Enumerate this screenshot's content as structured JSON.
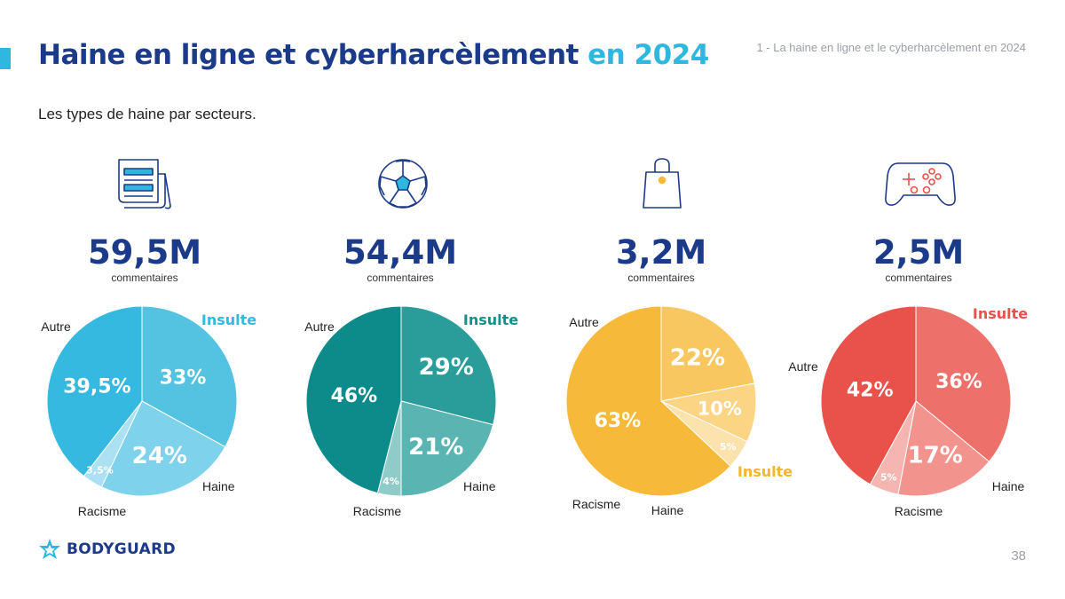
{
  "header": {
    "title_main": "Haine en ligne et cyberharcèlement",
    "title_highlight": "en 2024",
    "section": "1 - La haine en ligne et le cyberharcèlement en 2024",
    "subtitle": "Les  types de haine par secteurs."
  },
  "footer": {
    "brand": "BODYGUARD",
    "page": "38"
  },
  "icons": [
    "newspaper-icon",
    "football-icon",
    "shopping-bag-icon",
    "gamepad-icon"
  ],
  "colors": {
    "title": "#1b3a8a",
    "accent": "#2fb8df"
  },
  "chart_data": [
    {
      "type": "pie",
      "total": "59,5M",
      "unit": "commentaires",
      "slices": [
        {
          "label": "Insulte",
          "value": 33,
          "display": "33%",
          "color": "#54c3e2"
        },
        {
          "label": "Haine",
          "value": 24,
          "display": "24%",
          "color": "#7fd2ec"
        },
        {
          "label": "Racisme",
          "value": 3.5,
          "display": "3,5%",
          "color": "#abe1f3"
        },
        {
          "label": "Autre",
          "value": 39.5,
          "display": "39,5%",
          "color": "#35b9e0"
        }
      ],
      "highlight_color": "#35b9e0"
    },
    {
      "type": "pie",
      "total": "54,4M",
      "unit": "commentaires",
      "slices": [
        {
          "label": "Insulte",
          "value": 29,
          "display": "29%",
          "color": "#2a9c9a"
        },
        {
          "label": "Haine",
          "value": 21,
          "display": "21%",
          "color": "#5ab4b1"
        },
        {
          "label": "Racisme",
          "value": 4,
          "display": "4%",
          "color": "#8fcbc8"
        },
        {
          "label": "Autre",
          "value": 46,
          "display": "46%",
          "color": "#0d8a8a"
        }
      ],
      "highlight_color": "#168e8c"
    },
    {
      "type": "pie",
      "total": "3,2M",
      "unit": "commentaires",
      "slices": [
        {
          "label": "Insulte",
          "value": 22,
          "display": "22%",
          "color": "#f9c75f"
        },
        {
          "label": "Haine",
          "value": 10,
          "display": "10%",
          "color": "#fbd484"
        },
        {
          "label": "Racisme",
          "value": 5,
          "display": "5%",
          "color": "#fce2ad"
        },
        {
          "label": "Autre",
          "value": 63,
          "display": "63%",
          "color": "#f7b93a"
        }
      ],
      "highlight_color": "#f5b52e"
    },
    {
      "type": "pie",
      "total": "2,5M",
      "unit": "commentaires",
      "slices": [
        {
          "label": "Insulte",
          "value": 36,
          "display": "36%",
          "color": "#ee706a"
        },
        {
          "label": "Haine",
          "value": 17,
          "display": "17%",
          "color": "#f2938e"
        },
        {
          "label": "Racisme",
          "value": 5,
          "display": "5%",
          "color": "#f5b6b2"
        },
        {
          "label": "Autre",
          "value": 42,
          "display": "42%",
          "color": "#e8524a"
        }
      ],
      "highlight_color": "#e8524a"
    }
  ]
}
